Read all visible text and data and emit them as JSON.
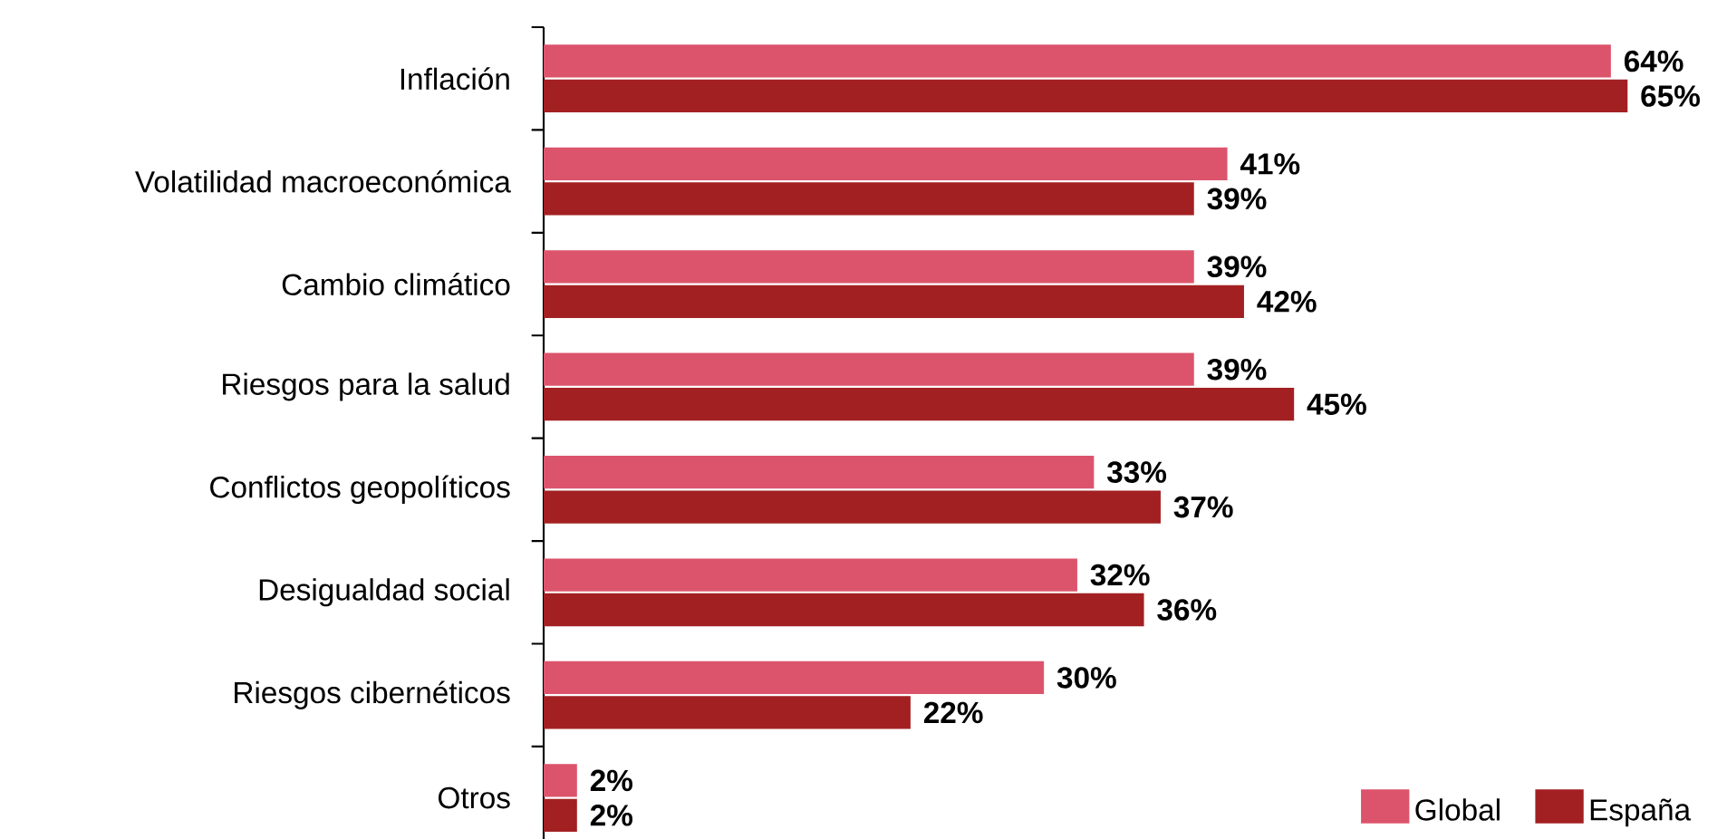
{
  "chart_data": {
    "type": "bar",
    "orientation": "horizontal",
    "categories": [
      "Inflación",
      "Volatilidad macroeconómica",
      "Cambio climático",
      "Riesgos para la salud",
      "Conflictos geopolíticos",
      "Desigualdad social",
      "Riesgos cibernéticos",
      "Otros"
    ],
    "series": [
      {
        "name": "Global",
        "color": "#dc546c",
        "values": [
          64,
          41,
          39,
          39,
          33,
          32,
          30,
          2
        ],
        "value_labels": [
          "64%",
          "41%",
          "39%",
          "39%",
          "33%",
          "32%",
          "30%",
          "2%"
        ]
      },
      {
        "name": "España",
        "color": "#a32022",
        "values": [
          65,
          39,
          42,
          45,
          37,
          36,
          22,
          2
        ],
        "value_labels": [
          "65%",
          "39%",
          "42%",
          "45%",
          "37%",
          "36%",
          "22%",
          "2%"
        ]
      }
    ],
    "legend": "bottom right",
    "tick_labels": "y",
    "grid": false
  }
}
